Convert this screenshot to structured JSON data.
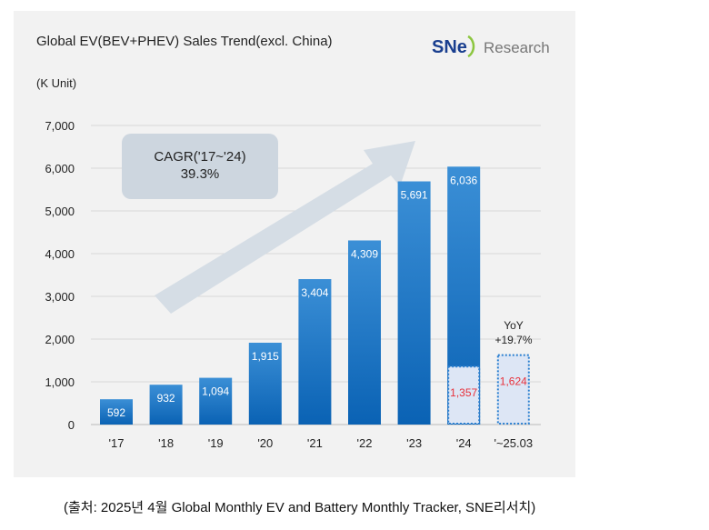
{
  "chart_data": {
    "type": "bar",
    "title": "Global EV(BEV+PHEV) Sales Trend(excl. China)",
    "ylabel": "(K Unit)",
    "brand": "SNE Research",
    "brand_parts": [
      "SNe",
      "Research"
    ],
    "ylim": [
      0,
      7000
    ],
    "yticks": [
      0,
      1000,
      2000,
      3000,
      4000,
      5000,
      6000,
      7000
    ],
    "ytick_labels": [
      "0",
      "1,000",
      "2,000",
      "3,000",
      "4,000",
      "5,000",
      "6,000",
      "7,000"
    ],
    "categories": [
      "'17",
      "'18",
      "'19",
      "'20",
      "'21",
      "'22",
      "'23",
      "'24",
      "'~25.03"
    ],
    "values": [
      592,
      932,
      1094,
      1915,
      3404,
      4309,
      5691,
      6036,
      null
    ],
    "value_labels": [
      "592",
      "932",
      "1,094",
      "1,915",
      "3,404",
      "4,309",
      "5,691",
      "6,036",
      ""
    ],
    "q1_values": [
      null,
      null,
      null,
      null,
      null,
      null,
      null,
      1357,
      1624
    ],
    "q1_labels": [
      "",
      "",
      "",
      "",
      "",
      "",
      "",
      "1,357",
      "1,624"
    ],
    "cagr_label": "CAGR('17~'24)",
    "cagr_value": "39.3%",
    "yoy_label": "YoY",
    "yoy_value": "+19.7%",
    "grid": true,
    "colors": {
      "bar": "#1f78c8",
      "bar_dark": "#0a5fb0",
      "q1_fill": "#dde6f5",
      "q1_text": "#e8303a",
      "panel": "#f2f2f2"
    }
  },
  "caption": "(출처: 2025년 4월 Global Monthly EV and Battery Monthly Tracker, SNE리서치)"
}
